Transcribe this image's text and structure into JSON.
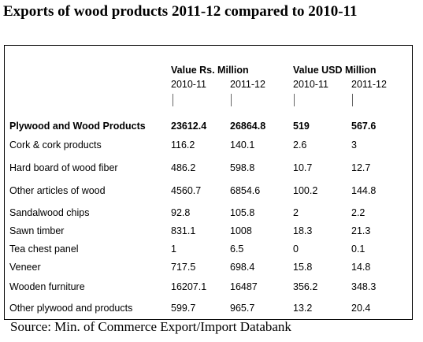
{
  "title": "Exports of  wood products 2011-12 compared to 2010-11",
  "header": {
    "group_rs": "Value Rs. Million",
    "group_usd": "Value USD Million",
    "years": [
      "2010-11",
      "2011-12",
      "2010-11",
      "2011-12"
    ]
  },
  "rows": [
    {
      "label": "Plywood and Wood Products",
      "values": [
        "23612.4",
        "26864.8",
        "519",
        "567.6"
      ],
      "bold": true
    },
    {
      "label": "Cork & cork products",
      "values": [
        "116.2",
        "140.1",
        "2.6",
        "3"
      ]
    },
    {
      "label": "Hard board of wood fiber",
      "values": [
        "486.2",
        "598.8",
        "10.7",
        "12.7"
      ]
    },
    {
      "label": "Other articles of wood",
      "values": [
        "4560.7",
        "6854.6",
        "100.2",
        "144.8"
      ]
    },
    {
      "label": "Sandalwood chips",
      "values": [
        "92.8",
        "105.8",
        "2",
        "2.2"
      ]
    },
    {
      "label": "Sawn timber",
      "values": [
        "831.1",
        "1008",
        "18.3",
        "21.3"
      ]
    },
    {
      "label": "Tea chest panel",
      "values": [
        "1",
        "6.5",
        "0",
        "0.1"
      ]
    },
    {
      "label": "Veneer",
      "values": [
        "717.5",
        "698.4",
        "15.8",
        "14.8"
      ]
    },
    {
      "label": "Wooden furniture",
      "values": [
        "16207.1",
        "16487",
        "356.2",
        "348.3"
      ]
    },
    {
      "label": "Other plywood and products",
      "values": [
        "599.7",
        "965.7",
        "13.2",
        "20.4"
      ]
    }
  ],
  "source": "Source: Min. of Commerce Export/Import Databank"
}
